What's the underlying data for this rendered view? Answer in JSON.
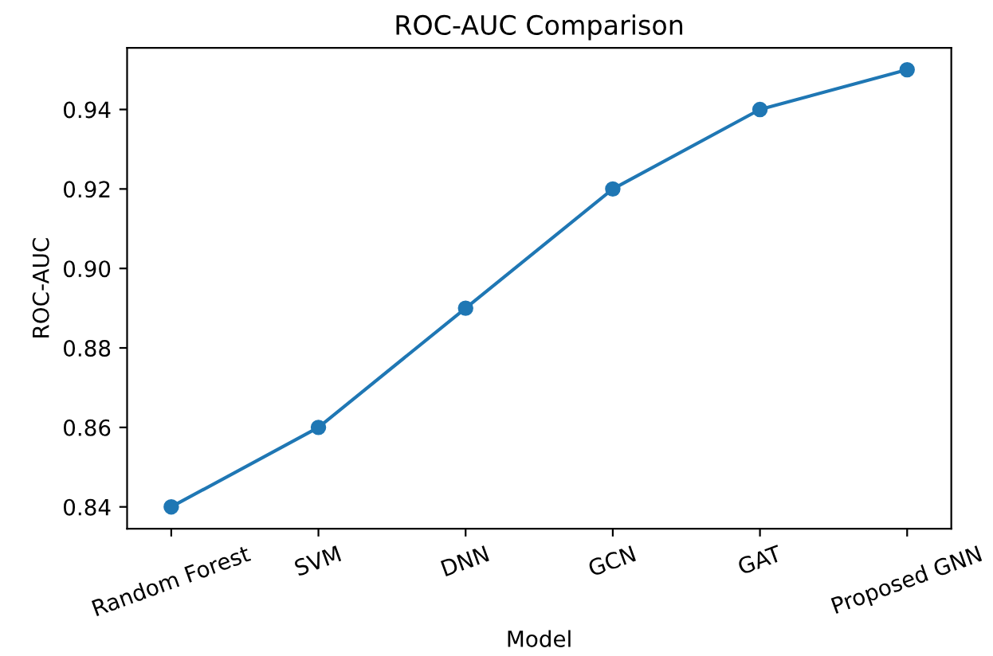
{
  "chart_data": {
    "type": "line",
    "title": "ROC-AUC Comparison",
    "xlabel": "Model",
    "ylabel": "ROC-AUC",
    "categories": [
      "Random Forest",
      "SVM",
      "DNN",
      "GCN",
      "GAT",
      "Proposed GNN"
    ],
    "series": [
      {
        "color": "#1f77b4",
        "values": [
          0.84,
          0.86,
          0.89,
          0.92,
          0.94,
          0.95
        ]
      }
    ],
    "ylim": [
      0.8345,
      0.9555
    ],
    "yticks": [
      0.84,
      0.86,
      0.88,
      {
        "value": 0.9,
        "label": "0.90"
      },
      0.92,
      0.94
    ],
    "marker": "circle",
    "line_style": "solid",
    "grid": false,
    "legend": false
  }
}
